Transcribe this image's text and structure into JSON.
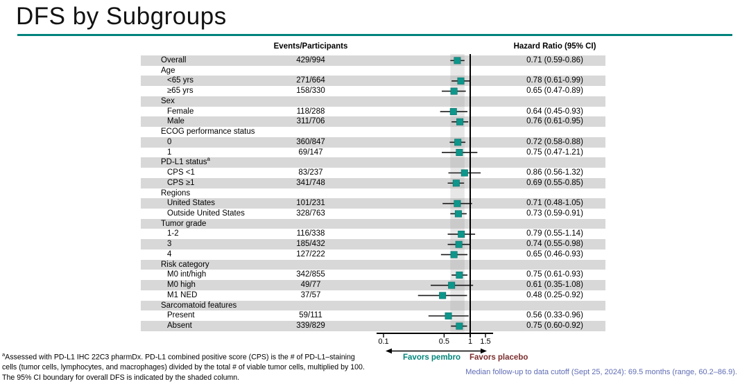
{
  "slide": {
    "title": "DFS by Subgroups"
  },
  "colors": {
    "accent": "#00837b",
    "stripe": "#d8d8d8",
    "marker": "#0e968b",
    "band": "#9e9e9e",
    "teal_text": "#00857a",
    "maroon": "#7b2d2d",
    "note_blue": "#5f6cb4"
  },
  "chart_data": {
    "type": "forest",
    "title": "DFS by Subgroups",
    "columns": {
      "events": "Events/Participants",
      "hr": "Hazard Ratio (95% CI)"
    },
    "x_axis": {
      "scale": "log",
      "ticks": [
        0.1,
        0.5,
        1,
        1.5
      ],
      "ref_line": 1,
      "shaded_band": {
        "low": 0.59,
        "high": 0.86
      }
    },
    "favors_left": "Favors pembro",
    "favors_right": "Favors placebo",
    "rows": [
      {
        "label": "Overall",
        "indent": 0,
        "events": "429/994",
        "hr": 0.71,
        "lo": 0.59,
        "hi": 0.86,
        "hr_text": "0.71 (0.59-0.86)"
      },
      {
        "label": "Age",
        "indent": 0,
        "category": true
      },
      {
        "label": "<65 yrs",
        "indent": 1,
        "events": "271/664",
        "hr": 0.78,
        "lo": 0.61,
        "hi": 0.99,
        "hr_text": "0.78 (0.61-0.99)"
      },
      {
        "label": "≥65 yrs",
        "indent": 1,
        "events": "158/330",
        "hr": 0.65,
        "lo": 0.47,
        "hi": 0.89,
        "hr_text": "0.65 (0.47-0.89)"
      },
      {
        "label": "Sex",
        "indent": 0,
        "category": true
      },
      {
        "label": "Female",
        "indent": 1,
        "events": "118/288",
        "hr": 0.64,
        "lo": 0.45,
        "hi": 0.93,
        "hr_text": "0.64 (0.45-0.93)"
      },
      {
        "label": "Male",
        "indent": 1,
        "events": "311/706",
        "hr": 0.76,
        "lo": 0.61,
        "hi": 0.95,
        "hr_text": "0.76 (0.61-0.95)"
      },
      {
        "label": "ECOG performance status",
        "indent": 0,
        "category": true
      },
      {
        "label": "0",
        "indent": 1,
        "events": "360/847",
        "hr": 0.72,
        "lo": 0.58,
        "hi": 0.88,
        "hr_text": "0.72 (0.58-0.88)"
      },
      {
        "label": "1",
        "indent": 1,
        "events": "69/147",
        "hr": 0.75,
        "lo": 0.47,
        "hi": 1.21,
        "hr_text": "0.75 (0.47-1.21)"
      },
      {
        "label": "PD-L1 status",
        "sup": "a",
        "indent": 0,
        "category": true
      },
      {
        "label": "CPS <1",
        "indent": 1,
        "events": "83/237",
        "hr": 0.86,
        "lo": 0.56,
        "hi": 1.32,
        "hr_text": "0.86 (0.56-1.32)"
      },
      {
        "label": "CPS ≥1",
        "indent": 1,
        "events": "341/748",
        "hr": 0.69,
        "lo": 0.55,
        "hi": 0.85,
        "hr_text": "0.69 (0.55-0.85)"
      },
      {
        "label": "Regions",
        "indent": 0,
        "category": true
      },
      {
        "label": "United States",
        "indent": 1,
        "events": "101/231",
        "hr": 0.71,
        "lo": 0.48,
        "hi": 1.05,
        "hr_text": "0.71 (0.48-1.05)"
      },
      {
        "label": "Outside United States",
        "indent": 1,
        "events": "328/763",
        "hr": 0.73,
        "lo": 0.59,
        "hi": 0.91,
        "hr_text": "0.73 (0.59-0.91)"
      },
      {
        "label": "Tumor grade",
        "indent": 0,
        "category": true
      },
      {
        "label": "1-2",
        "indent": 1,
        "events": "116/338",
        "hr": 0.79,
        "lo": 0.55,
        "hi": 1.14,
        "hr_text": "0.79 (0.55-1.14)"
      },
      {
        "label": "3",
        "indent": 1,
        "events": "185/432",
        "hr": 0.74,
        "lo": 0.55,
        "hi": 0.98,
        "hr_text": "0.74 (0.55-0.98)"
      },
      {
        "label": "4",
        "indent": 1,
        "events": "127/222",
        "hr": 0.65,
        "lo": 0.46,
        "hi": 0.93,
        "hr_text": "0.65 (0.46-0.93)"
      },
      {
        "label": "Risk category",
        "indent": 0,
        "category": true
      },
      {
        "label": "M0 int/high",
        "indent": 1,
        "events": "342/855",
        "hr": 0.75,
        "lo": 0.61,
        "hi": 0.93,
        "hr_text": "0.75 (0.61-0.93)"
      },
      {
        "label": "M0 high",
        "indent": 1,
        "events": "49/77",
        "hr": 0.61,
        "lo": 0.35,
        "hi": 1.08,
        "hr_text": "0.61 (0.35-1.08)"
      },
      {
        "label": "M1 NED",
        "indent": 1,
        "events": "37/57",
        "hr": 0.48,
        "lo": 0.25,
        "hi": 0.92,
        "hr_text": "0.48 (0.25-0.92)"
      },
      {
        "label": "Sarcomatoid features",
        "indent": 0,
        "category": true
      },
      {
        "label": "Present",
        "indent": 1,
        "events": "59/111",
        "hr": 0.56,
        "lo": 0.33,
        "hi": 0.96,
        "hr_text": "0.56 (0.33-0.96)"
      },
      {
        "label": "Absent",
        "indent": 1,
        "events": "339/829",
        "hr": 0.75,
        "lo": 0.6,
        "hi": 0.92,
        "hr_text": "0.75 (0.60-0.92)"
      }
    ]
  },
  "footnote": {
    "marker": "a",
    "line1": "Assessed with PD-L1 IHC 22C3 pharmDx. PD-L1 combined positive score (CPS) is the # of PD-L1–staining",
    "line2": "cells (tumor cells, lymphocytes, and macrophages) divided by the total # of viable tumor cells, multiplied by 100.",
    "line3": "The 95% CI boundary for overall DFS is indicated by the shaded column."
  },
  "median_note": "Median follow-up to data cutoff (Sept 25, 2024): 69.5 months (range, 60.2–86.9)."
}
